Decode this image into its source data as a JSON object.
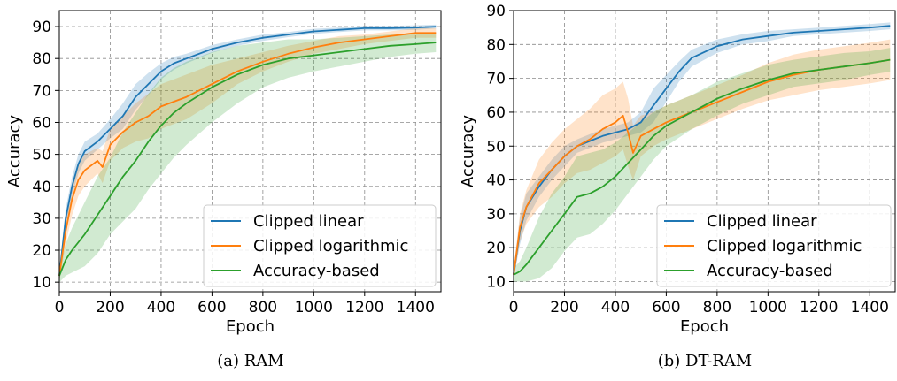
{
  "chart_data": [
    {
      "type": "line",
      "caption": "(a) RAM",
      "xlabel": "Epoch",
      "ylabel": "Accuracy",
      "xlim": [
        0,
        1500
      ],
      "ylim": [
        7,
        95
      ],
      "xticks": [
        0,
        200,
        400,
        600,
        800,
        1000,
        1200,
        1400
      ],
      "yticks": [
        10,
        20,
        30,
        40,
        50,
        60,
        70,
        80,
        90
      ],
      "grid": true,
      "legend_position": "lower-right",
      "series": [
        {
          "name": "Clipped linear",
          "color": "#1f77b4",
          "x": [
            0,
            25,
            50,
            75,
            100,
            150,
            200,
            250,
            300,
            350,
            400,
            450,
            500,
            600,
            700,
            800,
            900,
            1000,
            1100,
            1200,
            1300,
            1400,
            1480
          ],
          "y": [
            12,
            30,
            40,
            47,
            51,
            54,
            58,
            62,
            68,
            72,
            76,
            78.5,
            80,
            83,
            85,
            86.5,
            87.5,
            88.5,
            89,
            89.5,
            89.5,
            89.7,
            90
          ],
          "band": [
            2,
            3,
            3,
            3,
            3,
            2.5,
            3,
            4,
            4,
            3.5,
            2.5,
            2,
            1.5,
            1.2,
            1,
            1,
            0.8,
            0.8,
            0.7,
            0.7,
            0.7,
            0.7,
            0.6
          ]
        },
        {
          "name": "Clipped logarithmic",
          "color": "#ff7f0e",
          "x": [
            0,
            25,
            50,
            75,
            100,
            150,
            170,
            200,
            250,
            300,
            350,
            400,
            450,
            500,
            600,
            700,
            800,
            900,
            1000,
            1100,
            1200,
            1300,
            1400,
            1480
          ],
          "y": [
            12,
            26,
            36,
            42,
            45,
            48,
            46,
            53,
            57,
            60,
            62,
            65,
            66.5,
            68,
            72,
            76,
            79,
            81.5,
            83.5,
            85,
            86,
            87,
            88,
            88
          ],
          "band": [
            2,
            4,
            5,
            5,
            5,
            4,
            5,
            5,
            5,
            6,
            7,
            7,
            7,
            7,
            6,
            4,
            3,
            2.5,
            2,
            2,
            1.5,
            1.5,
            1.5,
            1.5
          ]
        },
        {
          "name": "Accuracy-based",
          "color": "#2ca02c",
          "x": [
            0,
            25,
            50,
            100,
            150,
            200,
            250,
            300,
            350,
            400,
            450,
            500,
            600,
            700,
            800,
            900,
            1000,
            1100,
            1200,
            1300,
            1400,
            1480
          ],
          "y": [
            12,
            17,
            20,
            25,
            31,
            37,
            43,
            48,
            54,
            59,
            63,
            66,
            71,
            75,
            78,
            80,
            81,
            82,
            83,
            84,
            84.5,
            85
          ],
          "band": [
            2,
            5,
            7,
            10,
            12,
            12,
            14,
            15,
            15,
            15,
            14,
            13,
            11,
            9,
            7,
            6,
            5,
            4.5,
            4,
            3.5,
            3,
            3
          ]
        }
      ]
    },
    {
      "type": "line",
      "caption": "(b) DT-RAM",
      "xlabel": "Epoch",
      "ylabel": "Accuracy",
      "xlim": [
        0,
        1500
      ],
      "ylim": [
        7,
        90
      ],
      "xticks": [
        0,
        200,
        400,
        600,
        800,
        1000,
        1200,
        1400
      ],
      "yticks": [
        10,
        20,
        30,
        40,
        50,
        60,
        70,
        80,
        90
      ],
      "grid": true,
      "legend_position": "lower-right",
      "series": [
        {
          "name": "Clipped linear",
          "color": "#1f77b4",
          "x": [
            0,
            25,
            50,
            100,
            150,
            200,
            250,
            300,
            350,
            400,
            450,
            500,
            550,
            600,
            650,
            700,
            800,
            900,
            1000,
            1100,
            1200,
            1300,
            1400,
            1480
          ],
          "y": [
            12,
            25,
            32,
            38,
            43,
            47,
            50,
            51.5,
            53,
            54,
            55,
            57,
            62,
            67,
            72,
            76,
            79.5,
            81.5,
            82.5,
            83.5,
            84,
            84.5,
            85,
            85.5
          ],
          "band": [
            1.5,
            4,
            4,
            3,
            3,
            3,
            2,
            2,
            2,
            2,
            2,
            3,
            5,
            4,
            3,
            2.5,
            2,
            1.5,
            1.5,
            1,
            1,
            1,
            1,
            1
          ]
        },
        {
          "name": "Clipped logarithmic",
          "color": "#ff7f0e",
          "x": [
            0,
            25,
            50,
            100,
            150,
            200,
            250,
            300,
            350,
            400,
            430,
            450,
            470,
            500,
            550,
            600,
            700,
            800,
            900,
            1000,
            1100,
            1200,
            1300,
            1400,
            1480
          ],
          "y": [
            12,
            26,
            32,
            39,
            43,
            47,
            50,
            52,
            55,
            57,
            59,
            54,
            48,
            53,
            55,
            57,
            60,
            63,
            66,
            69,
            71,
            72.5,
            73.5,
            74.5,
            75.5
          ],
          "band": [
            1.5,
            4,
            5,
            7,
            8,
            8,
            8,
            9,
            10,
            10,
            10,
            10,
            8,
            6,
            5,
            5,
            5,
            5,
            5,
            5.5,
            6,
            6,
            6,
            6,
            6
          ]
        },
        {
          "name": "Accuracy-based",
          "color": "#2ca02c",
          "x": [
            0,
            25,
            50,
            100,
            150,
            200,
            250,
            300,
            350,
            400,
            450,
            500,
            550,
            600,
            700,
            800,
            900,
            1000,
            1100,
            1200,
            1300,
            1400,
            1480
          ],
          "y": [
            12,
            13,
            15,
            20,
            25,
            30,
            35,
            36,
            38,
            41,
            45,
            49,
            53,
            56,
            60,
            64,
            67,
            69.5,
            71.5,
            72.5,
            73.5,
            74.5,
            75.5
          ],
          "band": [
            2,
            3,
            5,
            9,
            11,
            11,
            12,
            12,
            11,
            10,
            9,
            8,
            7,
            6,
            5,
            5,
            4.5,
            4.5,
            4,
            4,
            4,
            3.5,
            3.5
          ]
        }
      ]
    }
  ]
}
